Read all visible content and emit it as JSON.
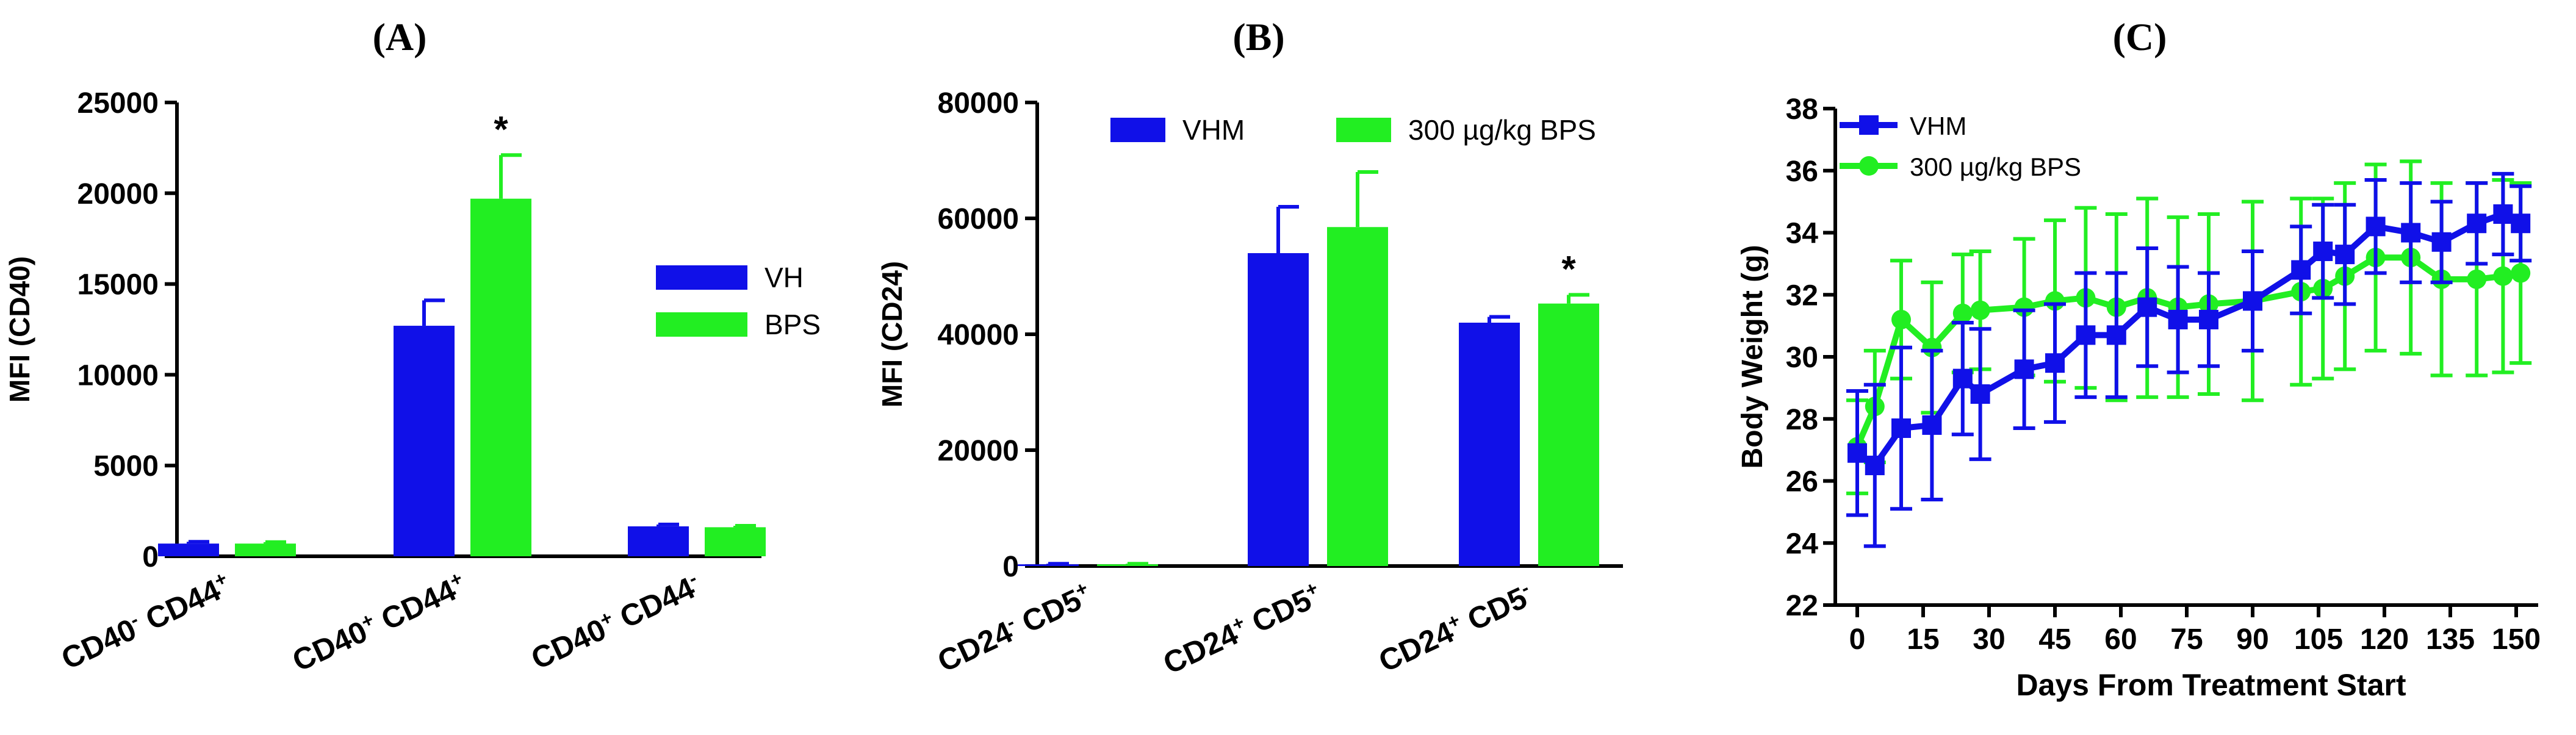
{
  "colors": {
    "vh": "#1010e8",
    "bps": "#22ee22",
    "axis": "#000000"
  },
  "chart_data": [
    {
      "panel": "(A)",
      "type": "bar",
      "ylabel": "MFI (CD40)",
      "ylim": [
        0,
        25000
      ],
      "yticks": [
        "0",
        "5000",
        "10000",
        "15000",
        "20000",
        "25000"
      ],
      "categories": [
        {
          "main1": "CD40",
          "sup1": "-",
          "main2": " CD44",
          "sup2": "+"
        },
        {
          "main1": "CD40",
          "sup1": "+",
          "main2": " CD44",
          "sup2": "+"
        },
        {
          "main1": "CD40",
          "sup1": "+",
          "main2": " CD44",
          "sup2": "-"
        }
      ],
      "series": [
        {
          "name": "VH",
          "values": [
            700,
            12700,
            1650
          ],
          "errors": [
            100,
            1400,
            100
          ]
        },
        {
          "name": "BPS",
          "values": [
            700,
            19700,
            1600
          ],
          "errors": [
            80,
            2400,
            80
          ]
        }
      ],
      "annotations": [
        {
          "category_index": 1,
          "series_index": 1,
          "text": "*"
        }
      ],
      "legend": "right"
    },
    {
      "panel": "(B)",
      "type": "bar",
      "ylabel": "MFI (CD24)",
      "ylim": [
        0,
        80000
      ],
      "yticks": [
        "0",
        "20000",
        "40000",
        "60000",
        "80000"
      ],
      "categories": [
        {
          "main1": "CD24",
          "sup1": "-",
          "main2": " CD5",
          "sup2": "+"
        },
        {
          "main1": "CD24",
          "sup1": "+",
          "main2": " CD5",
          "sup2": "+"
        },
        {
          "main1": "CD24",
          "sup1": "+",
          "main2": " CD5",
          "sup2": "-"
        }
      ],
      "series": [
        {
          "name": "VHM",
          "values": [
            300,
            54000,
            42000
          ],
          "errors": [
            100,
            8000,
            1000
          ]
        },
        {
          "name": "300 µg/kg BPS",
          "values": [
            300,
            58500,
            45300
          ],
          "errors": [
            100,
            9500,
            1500
          ]
        }
      ],
      "annotations": [
        {
          "category_index": 2,
          "series_index": 1,
          "text": "*"
        }
      ],
      "legend": "top"
    },
    {
      "panel": "(C)",
      "type": "line",
      "ylabel": "Body Weight (g)",
      "xlabel": "Days From Treatment Start",
      "xlim": [
        -5,
        155
      ],
      "ylim": [
        22,
        38
      ],
      "xticks": [
        0,
        15,
        30,
        45,
        60,
        75,
        90,
        105,
        120,
        135,
        150
      ],
      "yticks": [
        22,
        24,
        26,
        28,
        30,
        32,
        34,
        36,
        38
      ],
      "x": [
        0,
        4,
        10,
        17,
        24,
        28,
        38,
        45,
        52,
        59,
        66,
        73,
        80,
        90,
        101,
        106,
        111,
        118,
        126,
        133,
        141,
        147,
        151
      ],
      "series": [
        {
          "name": "VHM",
          "marker": "square",
          "values": [
            26.9,
            26.5,
            27.7,
            27.8,
            29.3,
            28.8,
            29.6,
            29.8,
            30.7,
            30.7,
            31.6,
            31.2,
            31.2,
            31.8,
            32.8,
            33.4,
            33.3,
            34.2,
            34.0,
            33.7,
            34.3,
            34.6,
            34.3
          ],
          "errors": [
            2.0,
            2.6,
            2.6,
            2.4,
            1.8,
            2.1,
            1.9,
            1.9,
            2.0,
            2.0,
            1.9,
            1.7,
            1.5,
            1.6,
            1.4,
            1.5,
            1.6,
            1.5,
            1.6,
            1.3,
            1.3,
            1.3,
            1.2
          ]
        },
        {
          "name": "300 µg/kg BPS",
          "marker": "circle",
          "values": [
            27.1,
            28.4,
            31.2,
            30.3,
            31.4,
            31.5,
            31.6,
            31.8,
            31.9,
            31.6,
            31.9,
            31.6,
            31.7,
            31.8,
            32.1,
            32.2,
            32.6,
            33.2,
            33.2,
            32.5,
            32.5,
            32.6,
            32.7
          ],
          "errors": [
            1.5,
            1.8,
            1.9,
            2.1,
            1.9,
            1.9,
            2.2,
            2.6,
            2.9,
            3.0,
            3.2,
            2.9,
            2.9,
            3.2,
            3.0,
            2.9,
            3.0,
            3.0,
            3.1,
            3.1,
            3.1,
            3.1,
            2.9
          ]
        }
      ],
      "legend": "top-left"
    }
  ]
}
